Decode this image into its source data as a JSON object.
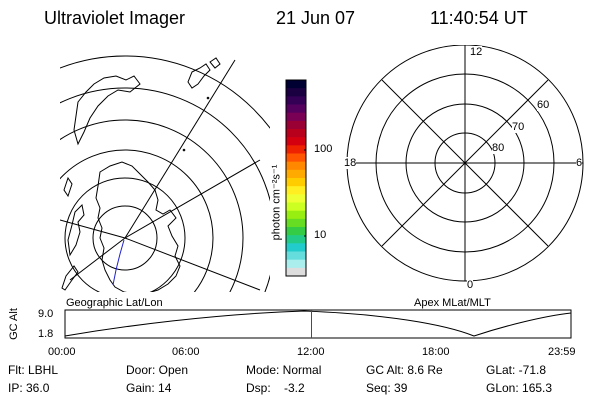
{
  "header": {
    "title": "Ultraviolet Imager",
    "date": "21 Jun 07",
    "time": "11:40:54 UT"
  },
  "left_map": {
    "label": "Geographic Lat/Lon"
  },
  "colorbar": {
    "unit_label": "photon cm⁻²s⁻¹",
    "tick_100": "100",
    "tick_10": "10",
    "colors": [
      "#000033",
      "#1a0040",
      "#330055",
      "#55005e",
      "#7a0055",
      "#9a0033",
      "#b8001c",
      "#d40010",
      "#ee2200",
      "#ff5500",
      "#ff8800",
      "#ffaa00",
      "#ffcc00",
      "#ffee22",
      "#eeff33",
      "#ccff22",
      "#99ee11",
      "#66dd22",
      "#33cc44",
      "#22cc88",
      "#22cccc",
      "#66dddd",
      "#aaeeee",
      "#dddddd"
    ]
  },
  "polar_plot": {
    "label": "Apex MLat/MLT",
    "mlt_12": "12",
    "mlt_18": "18",
    "mlt_6": "6",
    "mlt_0": "0",
    "lat_60": "60",
    "lat_70": "70",
    "lat_80": "80"
  },
  "timeline": {
    "axis_label": "GC Alt",
    "y_max": "9.0",
    "y_min": "1.8",
    "x_ticks": [
      "00:00",
      "06:00",
      "12:00",
      "18:00",
      "23:59"
    ],
    "marker_time": "11:40:54",
    "marker_color": "#ff0000"
  },
  "status": {
    "flt": "Flt: LBHL",
    "ip": "IP: 36.0",
    "door": "Door: Open",
    "gain": "Gain: 14",
    "mode": "Mode: Normal",
    "dsp": "Dsp:    -3.2",
    "gc_alt": "GC Alt: 8.6 Re",
    "seq": "Seq: 39",
    "glat": "GLat: -71.8",
    "glon": "GLon: 165.3"
  }
}
